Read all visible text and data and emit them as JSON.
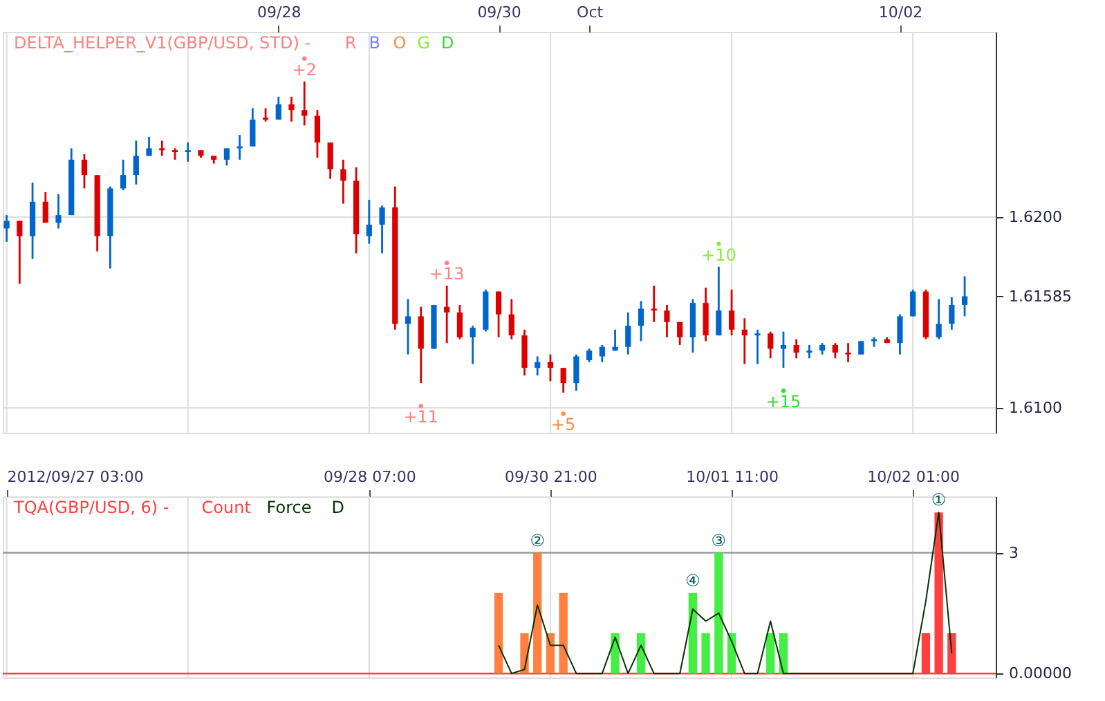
{
  "chart_data": [
    {
      "type": "candlestick",
      "title": "DELTA_HELPER_V1(GBP/USD, STD) -",
      "grid": true,
      "marker": "circle",
      "categories": [
        null,
        null,
        null,
        null,
        null,
        null,
        null,
        null,
        null,
        null,
        null,
        null,
        null,
        null,
        null,
        null,
        null,
        null,
        null,
        null,
        null,
        "09/28",
        null,
        null,
        null,
        null,
        null,
        null,
        null,
        null,
        null,
        null,
        null,
        null,
        null,
        null,
        null,
        null,
        "09/30",
        null,
        null,
        null,
        null,
        null,
        null,
        "Oct",
        null,
        null,
        null,
        null,
        null,
        null,
        null,
        null,
        null,
        null,
        null,
        null,
        null,
        null,
        null,
        null,
        null,
        null,
        null,
        null,
        null,
        null,
        null,
        "10/02",
        null,
        null,
        null,
        null,
        null
      ],
      "ohlc": [
        [
          1.6194,
          1.6201,
          1.6187,
          1.6198
        ],
        [
          1.6198,
          1.6198,
          1.6165,
          1.619
        ],
        [
          1.619,
          1.6218,
          1.6178,
          1.6208
        ],
        [
          1.6208,
          1.6213,
          1.6197,
          1.6197
        ],
        [
          1.6197,
          1.6212,
          1.6194,
          1.6201
        ],
        [
          1.6201,
          1.6236,
          1.6201,
          1.623
        ],
        [
          1.623,
          1.6233,
          1.6215,
          1.6222
        ],
        [
          1.6222,
          1.6222,
          1.6182,
          1.619
        ],
        [
          1.619,
          1.6216,
          1.6173,
          1.6215
        ],
        [
          1.6215,
          1.623,
          1.6214,
          1.6222
        ],
        [
          1.6222,
          1.624,
          1.6217,
          1.6232
        ],
        [
          1.6232,
          1.6242,
          1.6232,
          1.6236
        ],
        [
          1.6236,
          1.624,
          1.6232,
          1.6235
        ],
        [
          1.6235,
          1.6236,
          1.623,
          1.6234
        ],
        [
          1.6234,
          1.6239,
          1.6229,
          1.6235
        ],
        [
          1.6235,
          1.6235,
          1.6231,
          1.6232
        ],
        [
          1.6232,
          1.6232,
          1.6228,
          1.623
        ],
        [
          1.623,
          1.6236,
          1.6227,
          1.6236
        ],
        [
          1.6236,
          1.6243,
          1.623,
          1.6237
        ],
        [
          1.6237,
          1.6257,
          1.6237,
          1.6251
        ],
        [
          1.6252,
          1.6257,
          1.625,
          1.6251
        ],
        [
          1.6251,
          1.6263,
          1.6251,
          1.6259
        ],
        [
          1.6259,
          1.6263,
          1.625,
          1.6256
        ],
        [
          1.6256,
          1.6271,
          1.6248,
          1.6253
        ],
        [
          1.6253,
          1.6256,
          1.6231,
          1.6239
        ],
        [
          1.6239,
          1.6239,
          1.622,
          1.6225
        ],
        [
          1.6225,
          1.623,
          1.6207,
          1.6219
        ],
        [
          1.6219,
          1.6226,
          1.6181,
          1.6191
        ],
        [
          1.619,
          1.6209,
          1.6186,
          1.6196
        ],
        [
          1.6196,
          1.6206,
          1.6181,
          1.6205
        ],
        [
          1.6205,
          1.6216,
          1.6141,
          1.6144
        ],
        [
          1.6144,
          1.6157,
          1.6128,
          1.6148
        ],
        [
          1.6148,
          1.6153,
          1.6113,
          1.6131
        ],
        [
          1.6131,
          1.6154,
          1.6131,
          1.6154
        ],
        [
          1.6153,
          1.6164,
          1.6134,
          1.615
        ],
        [
          1.615,
          1.6154,
          1.6136,
          1.6137
        ],
        [
          1.6137,
          1.6143,
          1.6123,
          1.6142
        ],
        [
          1.6141,
          1.6162,
          1.614,
          1.6161
        ],
        [
          1.6161,
          1.6161,
          1.6137,
          1.6149
        ],
        [
          1.6149,
          1.6157,
          1.6136,
          1.6138
        ],
        [
          1.6138,
          1.6141,
          1.6117,
          1.6121
        ],
        [
          1.6121,
          1.6127,
          1.6117,
          1.6124
        ],
        [
          1.6124,
          1.6128,
          1.6114,
          1.6121
        ],
        [
          1.6121,
          1.6121,
          1.6108,
          1.6113
        ],
        [
          1.6113,
          1.6128,
          1.6109,
          1.6127
        ],
        [
          1.6125,
          1.6131,
          1.6124,
          1.613
        ],
        [
          1.6127,
          1.6133,
          1.6124,
          1.6132
        ],
        [
          1.613,
          1.6141,
          1.613,
          1.6132
        ],
        [
          1.6132,
          1.615,
          1.6128,
          1.6143
        ],
        [
          1.6143,
          1.6156,
          1.6135,
          1.6152
        ],
        [
          1.6152,
          1.6164,
          1.6145,
          1.6151
        ],
        [
          1.6151,
          1.6154,
          1.6137,
          1.6145
        ],
        [
          1.6145,
          1.6145,
          1.6133,
          1.6137
        ],
        [
          1.6137,
          1.6157,
          1.6129,
          1.6155
        ],
        [
          1.6155,
          1.6163,
          1.6135,
          1.6138
        ],
        [
          1.6138,
          1.6174,
          1.6138,
          1.6151
        ],
        [
          1.6151,
          1.6162,
          1.6138,
          1.6141
        ],
        [
          1.6141,
          1.6147,
          1.6123,
          1.6138
        ],
        [
          1.6138,
          1.6141,
          1.6123,
          1.6139
        ],
        [
          1.6139,
          1.614,
          1.6126,
          1.6131
        ],
        [
          1.6131,
          1.614,
          1.6121,
          1.6133
        ],
        [
          1.6133,
          1.6136,
          1.6126,
          1.6129
        ],
        [
          1.6129,
          1.6133,
          1.6126,
          1.613
        ],
        [
          1.613,
          1.6134,
          1.6128,
          1.6133
        ],
        [
          1.6133,
          1.6134,
          1.6126,
          1.6129
        ],
        [
          1.6129,
          1.6134,
          1.6124,
          1.6128
        ],
        [
          1.6128,
          1.6135,
          1.6128,
          1.6135
        ],
        [
          1.6135,
          1.6137,
          1.6132,
          1.6136
        ],
        [
          1.6136,
          1.6137,
          1.6134,
          1.6134
        ],
        [
          1.6134,
          1.6149,
          1.6128,
          1.6148
        ],
        [
          1.6148,
          1.6162,
          1.6148,
          1.6161
        ],
        [
          1.6161,
          1.6162,
          1.6136,
          1.6137
        ],
        [
          1.6137,
          1.6157,
          1.6136,
          1.6144
        ],
        [
          1.6144,
          1.6158,
          1.6141,
          1.6154
        ],
        [
          1.6154,
          1.6169,
          1.6148,
          1.61585
        ]
      ],
      "colors": [
        "#0066cc",
        "#dd0000",
        "#0066cc",
        "#dd0000",
        "#0066cc",
        "#0066cc",
        "#dd0000",
        "#dd0000",
        "#0066cc",
        "#0066cc",
        "#0066cc",
        "#0066cc",
        "#dd0000",
        "#dd0000",
        "#0066cc",
        "#dd0000",
        "#dd0000",
        "#0066cc",
        "#0066cc",
        "#0066cc",
        "#dd0000",
        "#0066cc",
        "#dd0000",
        "#dd0000",
        "#dd0000",
        "#dd0000",
        "#dd0000",
        "#dd0000",
        "#0066cc",
        "#0066cc",
        "#dd0000",
        "#0066cc",
        "#dd0000",
        "#0066cc",
        "#dd0000",
        "#dd0000",
        "#0066cc",
        "#0066cc",
        "#dd0000",
        "#dd0000",
        "#dd0000",
        "#0066cc",
        "#dd0000",
        "#dd0000",
        "#0066cc",
        "#0066cc",
        "#0066cc",
        "#0066cc",
        "#0066cc",
        "#0066cc",
        "#dd0000",
        "#dd0000",
        "#dd0000",
        "#0066cc",
        "#dd0000",
        "#0066cc",
        "#dd0000",
        "#dd0000",
        "#0066cc",
        "#dd0000",
        "#0066cc",
        "#dd0000",
        "#0066cc",
        "#0066cc",
        "#dd0000",
        "#dd0000",
        "#0066cc",
        "#0066cc",
        "#dd0000",
        "#0066cc",
        "#0066cc",
        "#dd0000",
        "#0066cc",
        "#0066cc",
        "#0066cc"
      ],
      "series": [
        {
          "name": "R",
          "type": "scatter",
          "color": "#ff8080",
          "values": [
            null,
            null,
            null,
            null,
            null,
            null,
            null,
            null,
            null,
            null,
            null,
            null,
            null,
            null,
            null,
            null,
            null,
            null,
            null,
            null,
            null,
            null,
            null,
            1.6283,
            null,
            null,
            null,
            null,
            null,
            null,
            null,
            null,
            1.6101,
            null,
            1.6176,
            null,
            null,
            null,
            null,
            null,
            null,
            null,
            null,
            null,
            null,
            null,
            null,
            null,
            null,
            null,
            null,
            null,
            null,
            null,
            null,
            null,
            null,
            null,
            null,
            null,
            null,
            null,
            null,
            null,
            null,
            null,
            null,
            null,
            null,
            null,
            null,
            null,
            null,
            null,
            null
          ]
        },
        {
          "name": "B",
          "type": "scatter",
          "color": "#8080ff",
          "values": [
            null,
            null,
            null,
            null,
            null,
            null,
            null,
            null,
            null,
            null,
            null,
            null,
            null,
            null,
            null,
            null,
            null,
            null,
            null,
            null,
            null,
            null,
            null,
            null,
            null,
            null,
            null,
            null,
            null,
            null,
            null,
            null,
            null,
            null,
            null,
            null,
            null,
            null,
            null,
            null,
            null,
            null,
            null,
            null,
            null,
            null,
            null,
            null,
            null,
            null,
            null,
            null,
            null,
            null,
            null,
            null,
            null,
            null,
            null,
            null,
            null,
            null,
            null,
            null,
            null,
            null,
            null,
            null,
            null,
            null,
            null,
            null,
            null,
            null,
            null
          ]
        },
        {
          "name": "O",
          "type": "scatter",
          "color": "#ff8c40",
          "values": [
            null,
            null,
            null,
            null,
            null,
            null,
            null,
            null,
            null,
            null,
            null,
            null,
            null,
            null,
            null,
            null,
            null,
            null,
            null,
            null,
            null,
            null,
            null,
            null,
            null,
            null,
            null,
            null,
            null,
            null,
            null,
            null,
            null,
            null,
            null,
            null,
            null,
            null,
            null,
            null,
            null,
            null,
            null,
            1.6097,
            null,
            null,
            null,
            null,
            null,
            null,
            null,
            null,
            null,
            null,
            null,
            null,
            null,
            null,
            null,
            null,
            null,
            null,
            null,
            null,
            null,
            null,
            null,
            null,
            null,
            null,
            null,
            null,
            null,
            null,
            null
          ]
        },
        {
          "name": "G",
          "type": "scatter",
          "color": "#88ee33",
          "values": [
            null,
            null,
            null,
            null,
            null,
            null,
            null,
            null,
            null,
            null,
            null,
            null,
            null,
            null,
            null,
            null,
            null,
            null,
            null,
            null,
            null,
            null,
            null,
            null,
            null,
            null,
            null,
            null,
            null,
            null,
            null,
            null,
            null,
            null,
            null,
            null,
            null,
            null,
            null,
            null,
            null,
            null,
            null,
            null,
            null,
            null,
            null,
            null,
            null,
            null,
            null,
            null,
            null,
            null,
            null,
            1.6186,
            null,
            null,
            null,
            null,
            null,
            null,
            null,
            null,
            null,
            null,
            null,
            null,
            null,
            null,
            null,
            null,
            null,
            null,
            null
          ]
        },
        {
          "name": "D",
          "type": "scatter",
          "color": "#33dd33",
          "values": [
            null,
            null,
            null,
            null,
            null,
            null,
            null,
            null,
            null,
            null,
            null,
            null,
            null,
            null,
            null,
            null,
            null,
            null,
            null,
            null,
            null,
            null,
            null,
            null,
            null,
            null,
            null,
            null,
            null,
            null,
            null,
            null,
            null,
            null,
            null,
            null,
            null,
            null,
            null,
            null,
            null,
            null,
            null,
            null,
            null,
            null,
            null,
            null,
            null,
            null,
            null,
            null,
            null,
            null,
            null,
            null,
            null,
            null,
            null,
            null,
            1.6109,
            null,
            null,
            null,
            null,
            null,
            null,
            null,
            null,
            null,
            null,
            null,
            null,
            null,
            null
          ]
        }
      ],
      "annotations": [
        {
          "text": "+2",
          "y": 1.6283
        },
        {
          "text": "+11",
          "y": 1.6101
        },
        {
          "text": "+13",
          "y": 1.6176
        },
        {
          "text": "+5",
          "y": 1.6097
        },
        {
          "text": "+10",
          "y": 1.6186
        },
        {
          "text": "+15",
          "y": 1.6109
        }
      ],
      "ylim": [
        1.6087,
        1.6297
      ],
      "yticks": [
        {
          "value": 1.61,
          "label": "1.6100"
        },
        {
          "value": 1.61585,
          "label": "1.61585"
        },
        {
          "value": 1.62,
          "label": "1.6200"
        }
      ]
    },
    {
      "type": "bar",
      "title": "TQA(GBP/USD, 6) -",
      "grid": "x",
      "categories": [
        "2012/09/27 03:00",
        null,
        null,
        null,
        null,
        null,
        null,
        null,
        null,
        null,
        null,
        null,
        null,
        null,
        null,
        null,
        null,
        null,
        null,
        null,
        null,
        null,
        null,
        null,
        null,
        null,
        null,
        null,
        "09/28 07:00",
        null,
        null,
        null,
        null,
        null,
        null,
        null,
        null,
        null,
        null,
        null,
        null,
        null,
        "09/30 21:00",
        null,
        null,
        null,
        null,
        null,
        null,
        null,
        null,
        null,
        null,
        null,
        null,
        null,
        "10/01 11:00",
        null,
        null,
        null,
        null,
        null,
        null,
        null,
        null,
        null,
        null,
        null,
        null,
        null,
        "10/02 01:00",
        null,
        null,
        null,
        null
      ],
      "series": [
        {
          "name": "Count",
          "type": "bar",
          "color": "#ff4040",
          "values": [
            null,
            null,
            null,
            null,
            null,
            null,
            null,
            null,
            null,
            null,
            null,
            null,
            null,
            null,
            null,
            null,
            null,
            null,
            null,
            null,
            null,
            null,
            null,
            null,
            null,
            null,
            null,
            null,
            null,
            null,
            null,
            null,
            null,
            null,
            null,
            null,
            null,
            null,
            2,
            null,
            1,
            3,
            1,
            2,
            null,
            null,
            null,
            1,
            null,
            1,
            null,
            null,
            null,
            2,
            1,
            3,
            1,
            null,
            null,
            1,
            1,
            null,
            null,
            null,
            null,
            null,
            null,
            null,
            null,
            null,
            null,
            1,
            4,
            1,
            null
          ],
          "colors": [
            null,
            null,
            null,
            null,
            null,
            null,
            null,
            null,
            null,
            null,
            null,
            null,
            null,
            null,
            null,
            null,
            null,
            null,
            null,
            null,
            null,
            null,
            null,
            null,
            null,
            null,
            null,
            null,
            null,
            null,
            null,
            null,
            null,
            null,
            null,
            null,
            null,
            null,
            "#ff8040",
            null,
            "#ff8040",
            "#ff8040",
            "#ff8040",
            "#ff8040",
            null,
            null,
            null,
            "#44ee44",
            null,
            "#44ee44",
            null,
            null,
            null,
            "#44ee44",
            "#44ee44",
            "#44ee44",
            "#44ee44",
            null,
            null,
            "#44ee44",
            "#44ee44",
            null,
            null,
            null,
            null,
            null,
            null,
            null,
            null,
            null,
            null,
            "#ff4040",
            "#ff4040",
            "#ff4040",
            null
          ],
          "value_labels": [
            null,
            null,
            null,
            null,
            null,
            null,
            null,
            null,
            null,
            null,
            null,
            null,
            null,
            null,
            null,
            null,
            null,
            null,
            null,
            null,
            null,
            null,
            null,
            null,
            null,
            null,
            null,
            null,
            null,
            null,
            null,
            null,
            null,
            null,
            null,
            null,
            null,
            null,
            null,
            null,
            null,
            "②",
            null,
            null,
            null,
            null,
            null,
            null,
            null,
            null,
            null,
            null,
            null,
            "④",
            null,
            "③",
            null,
            null,
            null,
            null,
            null,
            null,
            null,
            null,
            null,
            null,
            null,
            null,
            null,
            null,
            null,
            null,
            "①",
            null,
            null
          ]
        },
        {
          "name": "Force",
          "type": "line",
          "color": "#003300",
          "values": [
            null,
            null,
            null,
            null,
            null,
            null,
            null,
            null,
            null,
            null,
            null,
            null,
            null,
            null,
            null,
            null,
            null,
            null,
            null,
            null,
            null,
            null,
            null,
            null,
            null,
            null,
            null,
            null,
            null,
            null,
            null,
            null,
            null,
            null,
            null,
            null,
            null,
            null,
            0.7,
            0,
            0.1,
            1.7,
            0.7,
            0.7,
            0,
            0,
            0,
            0.9,
            0,
            0.7,
            0,
            0,
            0,
            1.6,
            1.3,
            1.5,
            0.8,
            0,
            0,
            1.3,
            0,
            0,
            0,
            0,
            0,
            0,
            0,
            0,
            0,
            0,
            0,
            1.8,
            4.0,
            0.5,
            null
          ]
        },
        {
          "name": "D",
          "type": "line",
          "color": "#003300",
          "values": [
            null,
            null,
            null,
            null,
            null,
            null,
            null,
            null,
            null,
            null,
            null,
            null,
            null,
            null,
            null,
            null,
            null,
            null,
            null,
            null,
            null,
            null,
            null,
            null,
            null,
            null,
            null,
            null,
            null,
            null,
            null,
            null,
            null,
            null,
            null,
            null,
            null,
            null,
            null,
            null,
            null,
            null,
            null,
            null,
            null,
            null,
            null,
            null,
            null,
            null,
            null,
            null,
            null,
            null,
            null,
            null,
            null,
            null,
            null,
            null,
            null,
            null,
            null,
            null,
            null,
            null,
            null,
            null,
            null,
            null,
            null,
            null,
            null,
            null,
            null
          ]
        }
      ],
      "ylim": [
        -0.1,
        4.4
      ],
      "yticks": [
        {
          "value": 0,
          "label": "0.00000"
        },
        {
          "value": 3,
          "label": "3"
        }
      ],
      "ref_lines": [
        {
          "axis": "y",
          "value": 3,
          "color": "#999999"
        },
        {
          "axis": "y",
          "value": 0,
          "color": "#ff4040"
        }
      ]
    }
  ]
}
